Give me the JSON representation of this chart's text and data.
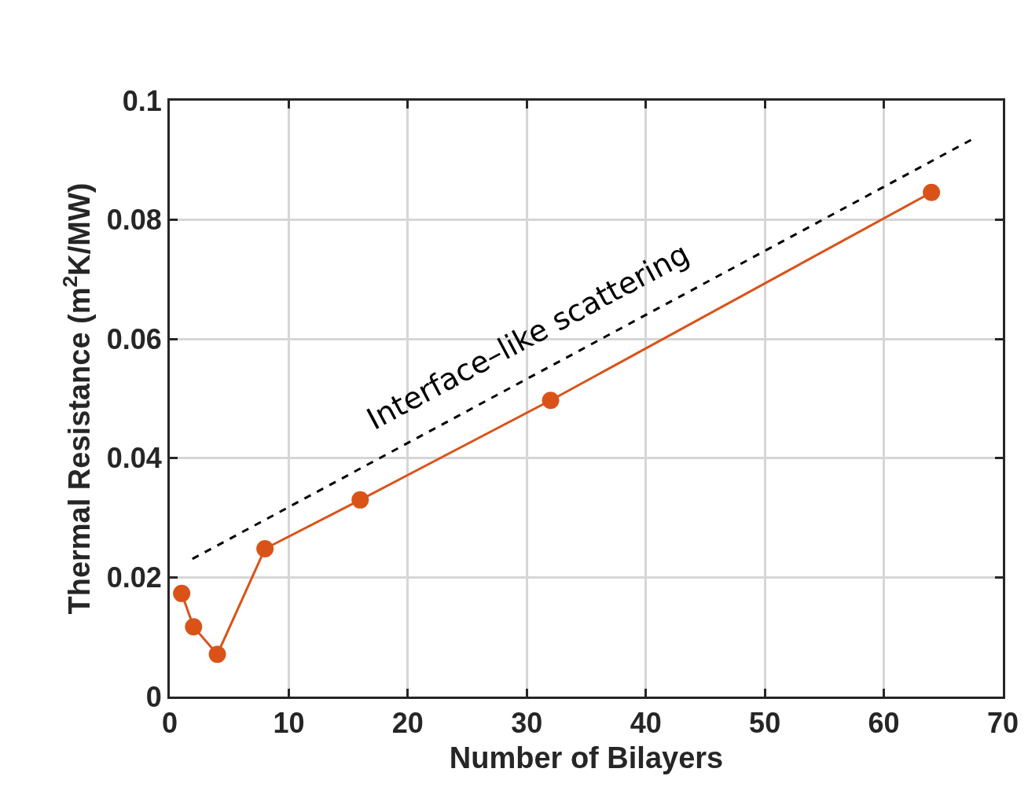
{
  "chart_data": {
    "type": "line",
    "xlabel": "Number of Bilayers",
    "ylabel": "Thermal Resistance (m$^{2}$K/MW)",
    "series": [
      {
        "color": "#d95319",
        "x": [
          1,
          2,
          4,
          8,
          16,
          32,
          64
        ],
        "values": [
          0.0173,
          0.0117,
          0.0071,
          0.0248,
          0.033,
          0.0497,
          0.0846
        ],
        "marker": "circle",
        "line_style": "solid"
      },
      {
        "color": "#000000",
        "x": [
          1.9,
          67.6
        ],
        "values": [
          0.0231,
          0.0937
        ],
        "marker": "none",
        "line_style": "dashed"
      }
    ],
    "annotations": [
      "Interface–like scattering"
    ],
    "xlim": [
      0,
      70
    ],
    "xticks": [
      0,
      10,
      20,
      30,
      40,
      50,
      60,
      70
    ],
    "ylim": [
      0,
      0.1
    ],
    "yticks": [
      0,
      0.02,
      0.04,
      0.06,
      0.08,
      0.1
    ],
    "grid": true
  }
}
